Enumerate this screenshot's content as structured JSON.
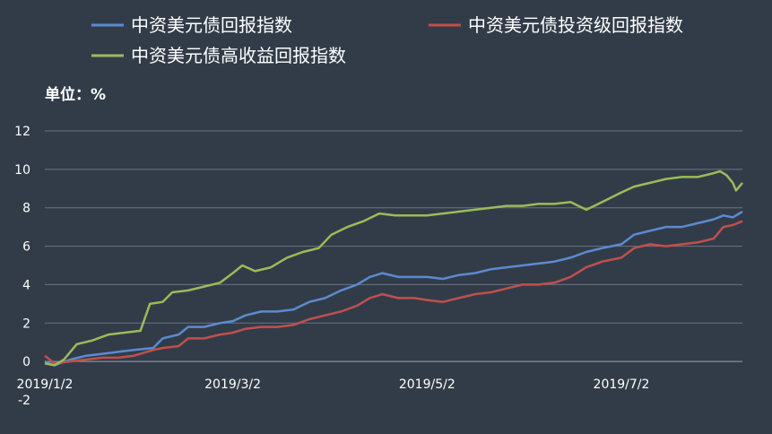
{
  "chart_data": {
    "type": "line",
    "title": "",
    "unit_label": "单位：%",
    "xlabel": "",
    "ylabel": "",
    "ylim": [
      -2,
      12
    ],
    "yticks": [
      12,
      10,
      8,
      6,
      4,
      2,
      0,
      -2
    ],
    "xlim": [
      "2019-01-02",
      "2019-08-09"
    ],
    "xticks": [
      "2019/1/2",
      "2019/3/2",
      "2019/5/2",
      "2019/7/2"
    ],
    "xtick_dates": [
      "2019-01-02",
      "2019-03-02",
      "2019-05-02",
      "2019-07-02"
    ],
    "grid": true,
    "legend_position": "top",
    "series": [
      {
        "name": "中资美元债回报指数",
        "color": "#5b8bd0",
        "points": [
          [
            "2019-01-02",
            0.0
          ],
          [
            "2019-01-05",
            -0.2
          ],
          [
            "2019-01-10",
            0.1
          ],
          [
            "2019-01-15",
            0.3
          ],
          [
            "2019-01-20",
            0.4
          ],
          [
            "2019-01-25",
            0.5
          ],
          [
            "2019-01-30",
            0.6
          ],
          [
            "2019-02-05",
            0.7
          ],
          [
            "2019-02-08",
            1.2
          ],
          [
            "2019-02-13",
            1.4
          ],
          [
            "2019-02-16",
            1.8
          ],
          [
            "2019-02-21",
            1.8
          ],
          [
            "2019-02-26",
            2.0
          ],
          [
            "2019-03-02",
            2.1
          ],
          [
            "2019-03-06",
            2.4
          ],
          [
            "2019-03-11",
            2.6
          ],
          [
            "2019-03-16",
            2.6
          ],
          [
            "2019-03-21",
            2.7
          ],
          [
            "2019-03-26",
            3.1
          ],
          [
            "2019-03-31",
            3.3
          ],
          [
            "2019-04-05",
            3.7
          ],
          [
            "2019-04-10",
            4.0
          ],
          [
            "2019-04-14",
            4.4
          ],
          [
            "2019-04-18",
            4.6
          ],
          [
            "2019-04-23",
            4.4
          ],
          [
            "2019-04-28",
            4.4
          ],
          [
            "2019-05-02",
            4.4
          ],
          [
            "2019-05-07",
            4.3
          ],
          [
            "2019-05-12",
            4.5
          ],
          [
            "2019-05-17",
            4.6
          ],
          [
            "2019-05-22",
            4.8
          ],
          [
            "2019-05-27",
            4.9
          ],
          [
            "2019-06-01",
            5.0
          ],
          [
            "2019-06-06",
            5.1
          ],
          [
            "2019-06-11",
            5.2
          ],
          [
            "2019-06-16",
            5.4
          ],
          [
            "2019-06-21",
            5.7
          ],
          [
            "2019-06-26",
            5.9
          ],
          [
            "2019-07-02",
            6.1
          ],
          [
            "2019-07-06",
            6.6
          ],
          [
            "2019-07-11",
            6.8
          ],
          [
            "2019-07-16",
            7.0
          ],
          [
            "2019-07-21",
            7.0
          ],
          [
            "2019-07-26",
            7.2
          ],
          [
            "2019-07-31",
            7.4
          ],
          [
            "2019-08-03",
            7.6
          ],
          [
            "2019-08-06",
            7.5
          ],
          [
            "2019-08-09",
            7.8
          ]
        ]
      },
      {
        "name": "中资美元债投资级回报指数",
        "color": "#c0504d",
        "points": [
          [
            "2019-01-02",
            0.3
          ],
          [
            "2019-01-05",
            -0.1
          ],
          [
            "2019-01-10",
            0.0
          ],
          [
            "2019-01-15",
            0.1
          ],
          [
            "2019-01-20",
            0.2
          ],
          [
            "2019-01-25",
            0.2
          ],
          [
            "2019-01-30",
            0.3
          ],
          [
            "2019-02-05",
            0.6
          ],
          [
            "2019-02-08",
            0.7
          ],
          [
            "2019-02-13",
            0.8
          ],
          [
            "2019-02-16",
            1.2
          ],
          [
            "2019-02-21",
            1.2
          ],
          [
            "2019-02-26",
            1.4
          ],
          [
            "2019-03-02",
            1.5
          ],
          [
            "2019-03-06",
            1.7
          ],
          [
            "2019-03-11",
            1.8
          ],
          [
            "2019-03-16",
            1.8
          ],
          [
            "2019-03-21",
            1.9
          ],
          [
            "2019-03-26",
            2.2
          ],
          [
            "2019-03-31",
            2.4
          ],
          [
            "2019-04-05",
            2.6
          ],
          [
            "2019-04-10",
            2.9
          ],
          [
            "2019-04-14",
            3.3
          ],
          [
            "2019-04-18",
            3.5
          ],
          [
            "2019-04-23",
            3.3
          ],
          [
            "2019-04-28",
            3.3
          ],
          [
            "2019-05-02",
            3.2
          ],
          [
            "2019-05-07",
            3.1
          ],
          [
            "2019-05-12",
            3.3
          ],
          [
            "2019-05-17",
            3.5
          ],
          [
            "2019-05-22",
            3.6
          ],
          [
            "2019-05-27",
            3.8
          ],
          [
            "2019-06-01",
            4.0
          ],
          [
            "2019-06-06",
            4.0
          ],
          [
            "2019-06-11",
            4.1
          ],
          [
            "2019-06-16",
            4.4
          ],
          [
            "2019-06-21",
            4.9
          ],
          [
            "2019-06-26",
            5.2
          ],
          [
            "2019-07-02",
            5.4
          ],
          [
            "2019-07-06",
            5.9
          ],
          [
            "2019-07-11",
            6.1
          ],
          [
            "2019-07-16",
            6.0
          ],
          [
            "2019-07-21",
            6.1
          ],
          [
            "2019-07-26",
            6.2
          ],
          [
            "2019-07-31",
            6.4
          ],
          [
            "2019-08-03",
            7.0
          ],
          [
            "2019-08-06",
            7.1
          ],
          [
            "2019-08-09",
            7.3
          ]
        ]
      },
      {
        "name": "中资美元债高收益回报指数",
        "color": "#9bbb59",
        "points": [
          [
            "2019-01-02",
            -0.1
          ],
          [
            "2019-01-05",
            -0.2
          ],
          [
            "2019-01-08",
            0.1
          ],
          [
            "2019-01-12",
            0.9
          ],
          [
            "2019-01-17",
            1.1
          ],
          [
            "2019-01-22",
            1.4
          ],
          [
            "2019-01-27",
            1.5
          ],
          [
            "2019-02-01",
            1.6
          ],
          [
            "2019-02-04",
            3.0
          ],
          [
            "2019-02-08",
            3.1
          ],
          [
            "2019-02-11",
            3.6
          ],
          [
            "2019-02-16",
            3.7
          ],
          [
            "2019-02-21",
            3.9
          ],
          [
            "2019-02-26",
            4.1
          ],
          [
            "2019-03-02",
            4.6
          ],
          [
            "2019-03-05",
            5.0
          ],
          [
            "2019-03-09",
            4.7
          ],
          [
            "2019-03-14",
            4.9
          ],
          [
            "2019-03-19",
            5.4
          ],
          [
            "2019-03-24",
            5.7
          ],
          [
            "2019-03-29",
            5.9
          ],
          [
            "2019-04-02",
            6.6
          ],
          [
            "2019-04-07",
            7.0
          ],
          [
            "2019-04-12",
            7.3
          ],
          [
            "2019-04-17",
            7.7
          ],
          [
            "2019-04-22",
            7.6
          ],
          [
            "2019-04-27",
            7.6
          ],
          [
            "2019-05-02",
            7.6
          ],
          [
            "2019-05-07",
            7.7
          ],
          [
            "2019-05-12",
            7.8
          ],
          [
            "2019-05-17",
            7.9
          ],
          [
            "2019-05-22",
            8.0
          ],
          [
            "2019-05-27",
            8.1
          ],
          [
            "2019-06-01",
            8.1
          ],
          [
            "2019-06-06",
            8.2
          ],
          [
            "2019-06-11",
            8.2
          ],
          [
            "2019-06-16",
            8.3
          ],
          [
            "2019-06-21",
            7.9
          ],
          [
            "2019-06-26",
            8.3
          ],
          [
            "2019-07-02",
            8.8
          ],
          [
            "2019-07-06",
            9.1
          ],
          [
            "2019-07-11",
            9.3
          ],
          [
            "2019-07-16",
            9.5
          ],
          [
            "2019-07-21",
            9.6
          ],
          [
            "2019-07-26",
            9.6
          ],
          [
            "2019-07-31",
            9.8
          ],
          [
            "2019-08-02",
            9.9
          ],
          [
            "2019-08-04",
            9.7
          ],
          [
            "2019-08-06",
            9.3
          ],
          [
            "2019-08-07",
            8.9
          ],
          [
            "2019-08-09",
            9.3
          ]
        ]
      }
    ]
  }
}
